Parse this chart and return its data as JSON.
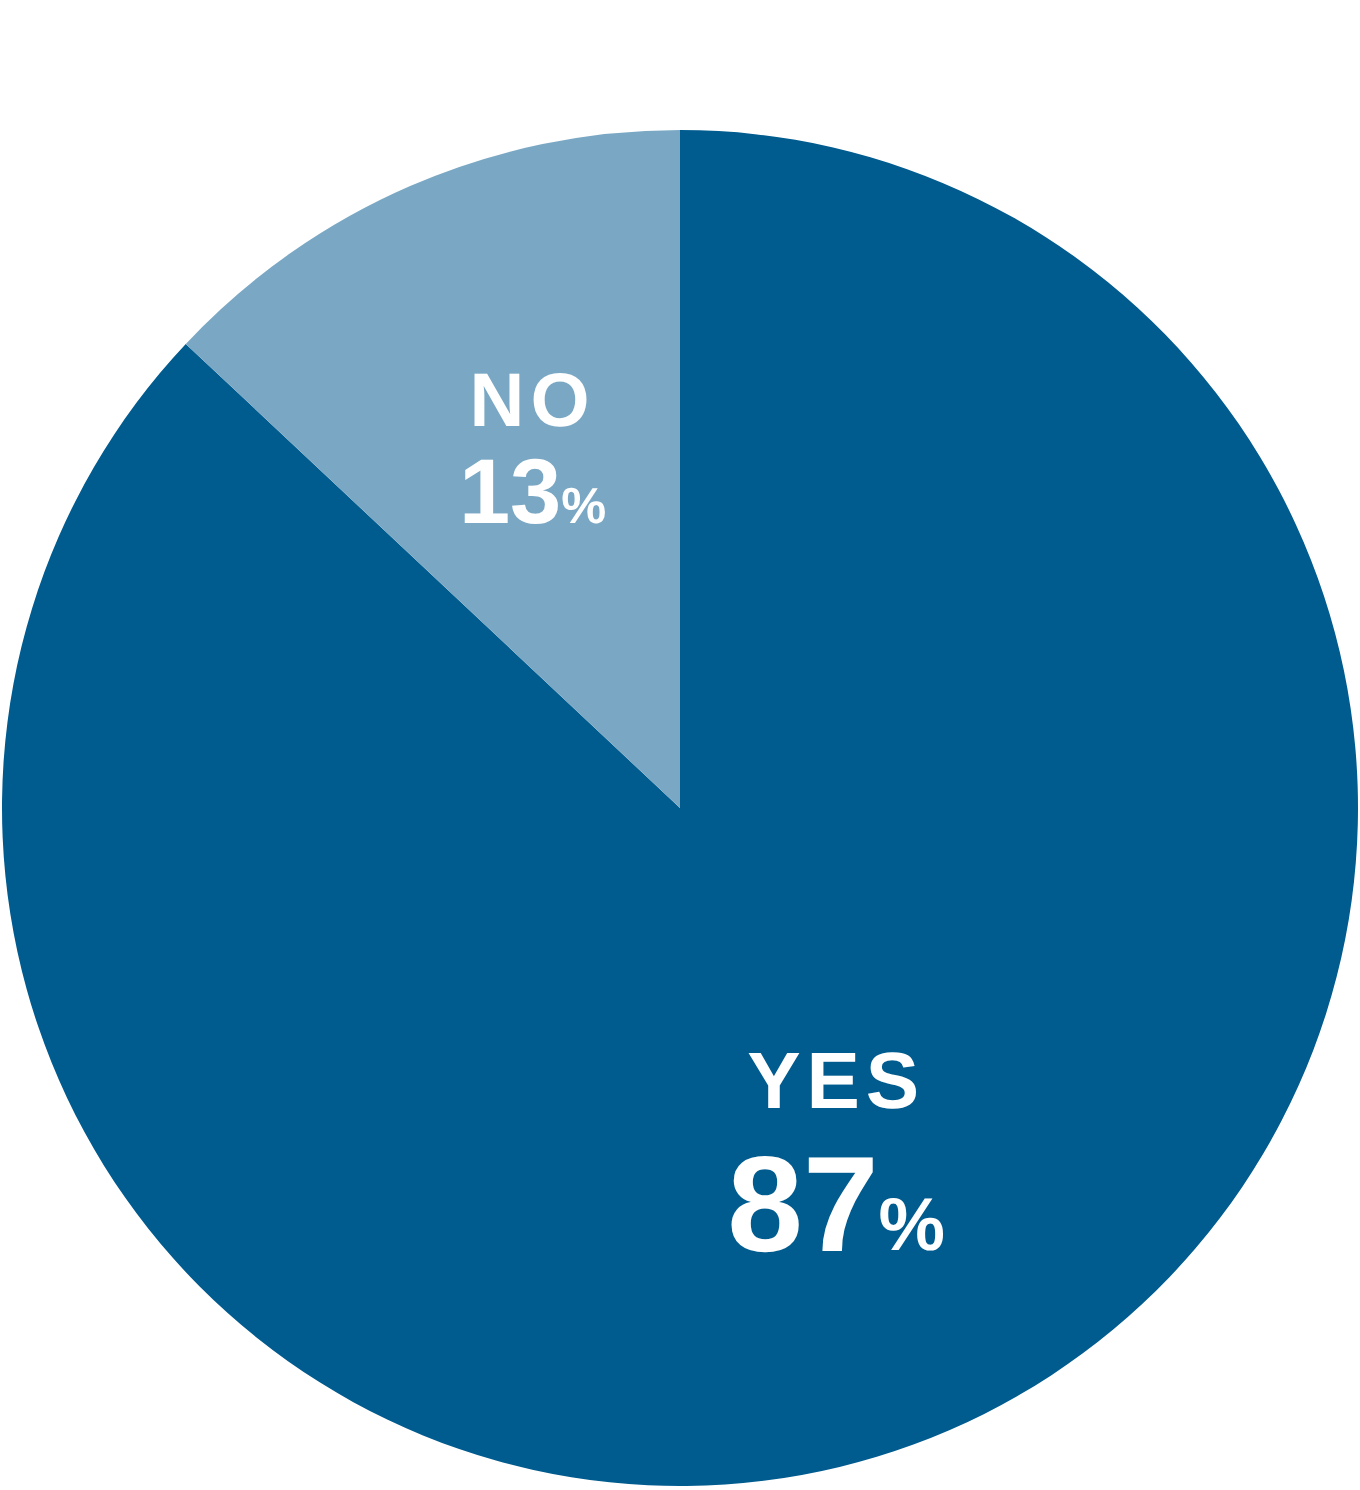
{
  "chart_data": {
    "type": "pie",
    "categories": [
      "YES",
      "NO"
    ],
    "values": [
      87,
      13
    ],
    "colors": [
      "#005b8f",
      "#7aa8c4"
    ],
    "value_labels": [
      "87%",
      "13%"
    ]
  }
}
